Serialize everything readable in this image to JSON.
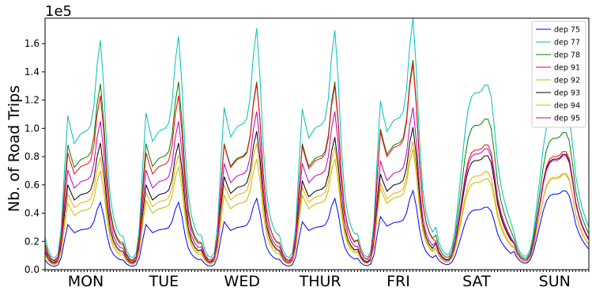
{
  "chart_data": {
    "type": "line",
    "title": "",
    "xlabel": "",
    "ylabel": "Nb. of Road Trips",
    "y_multiplier_label": "1e5",
    "ylim": [
      0,
      1.78
    ],
    "xlim": [
      0,
      167
    ],
    "yticks": [
      0.0,
      0.2,
      0.4,
      0.6,
      0.8,
      1.0,
      1.2,
      1.4,
      1.6
    ],
    "ytick_labels": [
      "0.0",
      "0.2",
      "0.4",
      "0.6",
      "0.8",
      "1.0",
      "1.2",
      "1.4",
      "1.6"
    ],
    "categories": [
      "MON",
      "TUE",
      "WED",
      "THUR",
      "FRI",
      "SAT",
      "SUN"
    ],
    "category_centers": [
      12.5,
      36.5,
      60.5,
      84.5,
      108.5,
      132.5,
      156.5
    ],
    "grid": false,
    "legend_position": "top-right",
    "weekday_profile": [
      0.2,
      0.12,
      0.08,
      0.07,
      0.1,
      0.26,
      0.62,
      0.94,
      0.85,
      0.77,
      0.8,
      0.83,
      0.84,
      0.85,
      0.88,
      1.0,
      1.25,
      1.4,
      1.12,
      0.72,
      0.45,
      0.32,
      0.25,
      0.21
    ],
    "weekend_profile": [
      0.22,
      0.14,
      0.1,
      0.08,
      0.08,
      0.12,
      0.22,
      0.38,
      0.55,
      0.72,
      0.84,
      0.9,
      0.92,
      0.92,
      0.93,
      0.96,
      0.96,
      0.9,
      0.74,
      0.55,
      0.44,
      0.36,
      0.3,
      0.25
    ],
    "series": [
      {
        "name": "dep 75",
        "color": "#0000ff",
        "weekday_scale": [
          0.34,
          0.34,
          0.36,
          0.36,
          0.4
        ],
        "weekend_scale": [
          0.46,
          0.58
        ]
      },
      {
        "name": "dep 77",
        "color": "#00bfbf",
        "weekday_scale": [
          1.16,
          1.18,
          1.22,
          1.21,
          1.27
        ],
        "weekend_scale": [
          1.36,
          1.2
        ]
      },
      {
        "name": "dep 78",
        "color": "#008000",
        "weekday_scale": [
          0.94,
          0.95,
          0.95,
          0.95,
          1.06
        ],
        "weekend_scale": [
          1.11,
          1.01
        ]
      },
      {
        "name": "dep 91",
        "color": "#ff0000",
        "weekday_scale": [
          0.88,
          0.88,
          0.94,
          0.93,
          1.04
        ],
        "weekend_scale": [
          0.92,
          0.87
        ]
      },
      {
        "name": "dep 92",
        "color": "#bfbf00",
        "weekday_scale": [
          0.5,
          0.52,
          0.56,
          0.56,
          0.61
        ],
        "weekend_scale": [
          0.67,
          0.7
        ]
      },
      {
        "name": "dep 93",
        "color": "#000000",
        "weekday_scale": [
          0.64,
          0.64,
          0.7,
          0.67,
          0.72
        ],
        "weekend_scale": [
          0.84,
          0.85
        ]
      },
      {
        "name": "dep 94",
        "color": "#ffa500",
        "weekday_scale": [
          0.57,
          0.58,
          0.64,
          0.62,
          0.65
        ],
        "weekend_scale": [
          0.72,
          0.71
        ]
      },
      {
        "name": "dep 95",
        "color": "#bf00bf",
        "weekday_scale": [
          0.75,
          0.75,
          0.8,
          0.8,
          0.82
        ],
        "weekend_scale": [
          0.89,
          0.84
        ]
      }
    ]
  }
}
